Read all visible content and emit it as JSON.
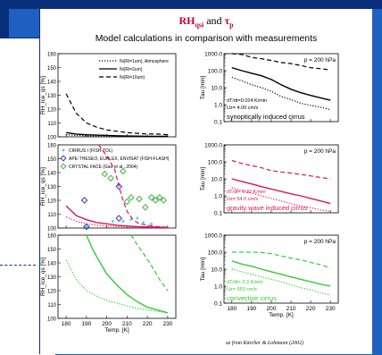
{
  "header": {
    "title_main": "RH",
    "title_sub": "qsi",
    "title_and": " and ",
    "title_tau": "τ",
    "title_tau_sub": "p",
    "subtitle": "Model calculations in comparison with measurements"
  },
  "footnote": {
    "text": "uz from Kärcher & Lohmann (2002)"
  },
  "colors": {
    "black": "#000000",
    "red": "#e0145a",
    "green": "#33cc33",
    "frame": "#0a2f7a",
    "slide_bg": "#1f5fbf"
  },
  "chart_data": [
    {
      "type": "line",
      "panel": "rh-top",
      "ylabel": "RH_ice_qs [%]",
      "xlabel": "",
      "xlim": [
        176,
        234
      ],
      "ylim": [
        100,
        160
      ],
      "yticks": [
        100,
        110,
        120,
        130,
        140,
        150,
        160
      ],
      "legend": [
        "Ni(Ri=1um), Atmosphere",
        "Ni(Ri=2um)",
        "Ni(Ri=10um)"
      ],
      "series": [
        {
          "name": "Ni(Ri=1um), Atmosphere",
          "style": "dotted",
          "color": "#000000",
          "x": [
            180,
            185,
            190,
            195,
            200,
            205,
            210,
            215,
            220,
            225,
            230
          ],
          "y": [
            101.5,
            101,
            100.8,
            100.5,
            100.4,
            100.3,
            100.2,
            100.2,
            100.1,
            100.1,
            100.1
          ]
        },
        {
          "name": "Ni(Ri=2um)",
          "style": "solid",
          "color": "#000000",
          "x": [
            180,
            185,
            190,
            195,
            200,
            205,
            210,
            215,
            220,
            225,
            230
          ],
          "y": [
            103,
            102,
            101.5,
            101.2,
            101,
            100.8,
            100.6,
            100.5,
            100.4,
            100.3,
            100.3
          ]
        },
        {
          "name": "Ni(Ri=10um)",
          "style": "dashed",
          "color": "#000000",
          "x": [
            180,
            185,
            190,
            195,
            200,
            205,
            210,
            215,
            220,
            225,
            230
          ],
          "y": [
            131,
            117,
            110,
            107,
            105,
            104,
            103,
            102.5,
            102,
            102,
            101.5
          ]
        }
      ]
    },
    {
      "type": "line",
      "panel": "rh-mid",
      "ylabel": "RH_ice_qs [%]",
      "xlim": [
        176,
        234
      ],
      "ylim": [
        100,
        160
      ],
      "yticks": [
        100,
        110,
        120,
        130,
        140,
        150,
        160
      ],
      "legend": [
        "CIRRUS I (FISH-TDL)",
        "APE-THESEO, EUPLEX, ENVISAT (FISH-FLASH)",
        "CRYSTAL FACE (Gao et al., 2004)"
      ],
      "series": [
        {
          "name": "",
          "style": "dotted",
          "color": "#e0145a",
          "x": [
            180,
            185,
            190,
            195,
            200,
            205,
            210,
            215,
            220,
            225,
            230
          ],
          "y": [
            108,
            105,
            103,
            102,
            101.5,
            101,
            100.8,
            100.6,
            100.5,
            100.4,
            100.3
          ]
        },
        {
          "name": "",
          "style": "solid",
          "color": "#e0145a",
          "x": [
            180,
            185,
            190,
            195,
            200,
            205,
            210,
            215,
            220,
            225,
            230
          ],
          "y": [
            116,
            109,
            106,
            104,
            103,
            102,
            101.5,
            101,
            100.8,
            100.6,
            100.5
          ]
        },
        {
          "name": "",
          "style": "dashed",
          "color": "#e0145a",
          "x": [
            196,
            200,
            204,
            206,
            208,
            210,
            213,
            216,
            220,
            225,
            230
          ],
          "y": [
            160,
            152,
            142,
            130,
            120,
            112,
            106,
            103,
            102,
            101,
            100.5
          ]
        }
      ],
      "points": [
        {
          "series": "CIRRUS I (FISH-TDL)",
          "marker": "star",
          "color": "#33ccee",
          "x": [
            190,
            203,
            208,
            212,
            215,
            218,
            222
          ],
          "y": [
            101,
            105,
            105,
            106,
            107,
            104,
            103
          ]
        },
        {
          "series": "APE-THESEO, EUPLEX, ENVISAT (FISH-FLASH)",
          "marker": "diamond",
          "color": "#2222aa",
          "x": [
            189,
            190,
            206,
            206
          ],
          "y": [
            120,
            101,
            130,
            107
          ]
        },
        {
          "series": "CRYSTAL FACE (Gao et al., 2004)",
          "marker": "diamond",
          "color": "#33aa33",
          "x": [
            199,
            202,
            208,
            210,
            212,
            216,
            219,
            222,
            224,
            226,
            228
          ],
          "y": [
            139,
            136,
            141,
            119,
            122,
            121,
            115,
            122,
            120,
            122,
            120
          ]
        }
      ]
    },
    {
      "type": "line",
      "panel": "rh-bot",
      "ylabel": "RH_ice_qs [%]",
      "xlabel": "Temp. [K]",
      "xlim": [
        176,
        234
      ],
      "ylim": [
        100,
        160
      ],
      "yticks": [
        100,
        110,
        120,
        130,
        140,
        150,
        160
      ],
      "xticks": [
        180,
        190,
        200,
        210,
        220,
        230
      ],
      "series": [
        {
          "name": "",
          "style": "dotted",
          "color": "#33cc33",
          "x": [
            180,
            185,
            190,
            195,
            200,
            205,
            210,
            215,
            220,
            225,
            230
          ],
          "y": [
            142,
            128,
            120,
            116,
            113,
            111,
            109,
            107,
            106,
            105,
            104
          ]
        },
        {
          "name": "",
          "style": "solid",
          "color": "#33cc33",
          "x": [
            190,
            193,
            196,
            200,
            205,
            210,
            215,
            220,
            225,
            230
          ],
          "y": [
            160,
            150,
            142,
            132,
            124,
            117,
            112,
            108,
            106,
            104
          ]
        },
        {
          "name": "",
          "style": "dashed",
          "color": "#33cc33",
          "x": [
            212,
            215,
            218,
            222,
            226,
            230
          ],
          "y": [
            160,
            153,
            147,
            138,
            128,
            120
          ]
        }
      ]
    },
    {
      "type": "line",
      "panel": "tau-top",
      "ylabel": "Tau [min]",
      "scale": "log",
      "xlim": [
        176,
        234
      ],
      "ylim": [
        0.1,
        1000
      ],
      "yticks": [
        "0.1",
        "1.0",
        "10.0",
        "100.0",
        "1000.0"
      ],
      "pressure_label": "p  =  200 hPa",
      "annotation_lines": [
        "dT/dt=0.024 K/min",
        "Uz= 4.00 cm/s"
      ],
      "caption": "synoptically induced cirrus",
      "series": [
        {
          "name": "",
          "style": "dashed",
          "color": "#000000",
          "x": [
            180,
            185,
            190,
            195,
            200,
            205,
            210,
            215,
            220,
            225,
            230
          ],
          "y": [
            1000,
            900,
            600,
            500,
            400,
            300,
            260,
            200,
            150,
            130,
            110
          ]
        },
        {
          "name": "",
          "style": "solid",
          "color": "#000000",
          "x": [
            180,
            185,
            190,
            195,
            200,
            205,
            210,
            215,
            220,
            225,
            230
          ],
          "y": [
            150,
            100,
            70,
            50,
            30,
            15,
            8,
            5,
            3.5,
            2.5,
            1.8
          ]
        },
        {
          "name": "",
          "style": "dotted",
          "color": "#000000",
          "x": [
            180,
            185,
            190,
            195,
            200,
            205,
            210,
            215,
            220,
            225,
            230
          ],
          "y": [
            40,
            25,
            15,
            10,
            6,
            3,
            2,
            1.2,
            0.9,
            0.7,
            0.5
          ]
        }
      ]
    },
    {
      "type": "line",
      "panel": "tau-mid",
      "ylabel": "Tau [min]",
      "scale": "log",
      "xlim": [
        176,
        234
      ],
      "ylim": [
        0.1,
        1000
      ],
      "yticks": [
        "0.1",
        "1.0",
        "10.0",
        "100.0",
        "1000.0"
      ],
      "pressure_label": "p  =  200 hPa",
      "annotation_lines": [
        "dT/dt= 0.32 K/min",
        "Uz= 54.0 cm/s"
      ],
      "caption": "gravity wave induced cirrus",
      "series": [
        {
          "name": "",
          "style": "dashed",
          "color": "#e0145a",
          "x": [
            180,
            185,
            190,
            195,
            200,
            205,
            210,
            215,
            220,
            225,
            230
          ],
          "y": [
            120,
            80,
            60,
            45,
            30,
            25,
            22,
            18,
            15,
            12,
            10
          ]
        },
        {
          "name": "",
          "style": "solid",
          "color": "#e0145a",
          "x": [
            180,
            185,
            190,
            195,
            200,
            205,
            210,
            215,
            220,
            225,
            230
          ],
          "y": [
            10,
            7,
            5,
            3.5,
            2.5,
            1.8,
            1.3,
            1,
            0.7,
            0.5,
            0.35
          ]
        },
        {
          "name": "",
          "style": "dotted",
          "color": "#e0145a",
          "x": [
            180,
            185,
            190,
            195,
            200,
            205,
            210,
            215,
            220,
            225,
            230
          ],
          "y": [
            3,
            2,
            1.5,
            1,
            0.7,
            0.5,
            0.35,
            0.25,
            0.2,
            0.15,
            0.12
          ]
        }
      ]
    },
    {
      "type": "line",
      "panel": "tau-bot",
      "ylabel": "Tau [min]",
      "xlabel": "Temp. [K]",
      "scale": "log",
      "xlim": [
        176,
        234
      ],
      "ylim": [
        0.1,
        1000
      ],
      "yticks": [
        "0.1",
        "1.0",
        "10.0",
        "100.0",
        "1000.0"
      ],
      "xticks": [
        180,
        190,
        200,
        210,
        220,
        230
      ],
      "pressure_label": "p  =  200 hPa",
      "annotation_lines": [
        "dT/dt= 3.3 K/min",
        "Uz= 550 cm/s"
      ],
      "caption": "convective cirrus",
      "series": [
        {
          "name": "",
          "style": "dashed",
          "color": "#33cc33",
          "x": [
            180,
            185,
            190,
            195,
            200,
            205,
            210,
            215,
            220,
            225,
            230
          ],
          "y": [
            100,
            100,
            100,
            95,
            80,
            60,
            45,
            35,
            25,
            18,
            12
          ]
        },
        {
          "name": "",
          "style": "solid",
          "color": "#33cc33",
          "x": [
            180,
            185,
            190,
            195,
            200,
            205,
            210,
            215,
            220,
            225,
            230
          ],
          "y": [
            30,
            20,
            15,
            10,
            7,
            5,
            3.5,
            2.5,
            1.8,
            1.3,
            1
          ]
        },
        {
          "name": "",
          "style": "dotted",
          "color": "#33cc33",
          "x": [
            180,
            185,
            190,
            195,
            200,
            205,
            210,
            215,
            220,
            225,
            230
          ],
          "y": [
            10,
            7,
            5,
            3.5,
            2.5,
            1.8,
            1.2,
            0.8,
            0.6,
            0.4,
            0.3
          ]
        }
      ]
    }
  ]
}
